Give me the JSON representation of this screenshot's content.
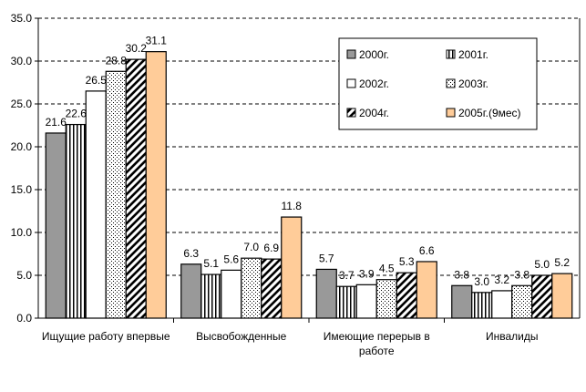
{
  "chart_data": {
    "type": "bar",
    "title": "",
    "xlabel": "",
    "ylabel": "",
    "ylim": [
      0,
      35
    ],
    "yticks": [
      "0.0",
      "5.0",
      "10.0",
      "15.0",
      "20.0",
      "25.0",
      "30.0",
      "35.0"
    ],
    "grid": true,
    "legend_placement": "top-right",
    "categories": [
      [
        "Ищущие работу впервые"
      ],
      [
        "Высвобожденные"
      ],
      [
        "Имеющие перерыв в",
        "работе"
      ],
      [
        "Инвалиды"
      ]
    ],
    "series": [
      {
        "name": "2000г.",
        "pattern": "solid-gray",
        "color": "#999999",
        "values": [
          21.6,
          6.3,
          5.7,
          3.8
        ],
        "labels": [
          "21.6",
          "6.3",
          "5.7",
          "3.8"
        ]
      },
      {
        "name": "2001г.",
        "pattern": "vertical-lines",
        "color": "#ffffff",
        "values": [
          22.6,
          5.1,
          3.7,
          3.0
        ],
        "labels": [
          "22.6",
          "5.1",
          "3.7",
          "3.0"
        ]
      },
      {
        "name": "2002г.",
        "pattern": "white",
        "color": "#ffffff",
        "values": [
          26.5,
          5.6,
          3.9,
          3.2
        ],
        "labels": [
          "26.5",
          "5.6",
          "3.9",
          "3.2"
        ]
      },
      {
        "name": "2003г.",
        "pattern": "dots",
        "color": "#ffffff",
        "values": [
          28.8,
          7.0,
          4.5,
          3.8
        ],
        "labels": [
          "28.8",
          "7.0",
          "4.5",
          "3.8"
        ]
      },
      {
        "name": "2004г.",
        "pattern": "diagonal",
        "color": "#ffffff",
        "values": [
          30.2,
          6.9,
          5.3,
          5.0
        ],
        "labels": [
          "30.2",
          "6.9",
          "5.3",
          "5.0"
        ]
      },
      {
        "name": "2005г.(9мес)",
        "pattern": "solid-peach",
        "color": "#ffcc99",
        "values": [
          31.1,
          11.8,
          6.6,
          5.2
        ],
        "labels": [
          "31.1",
          "11.8",
          "6.6",
          "5.2"
        ]
      }
    ]
  }
}
